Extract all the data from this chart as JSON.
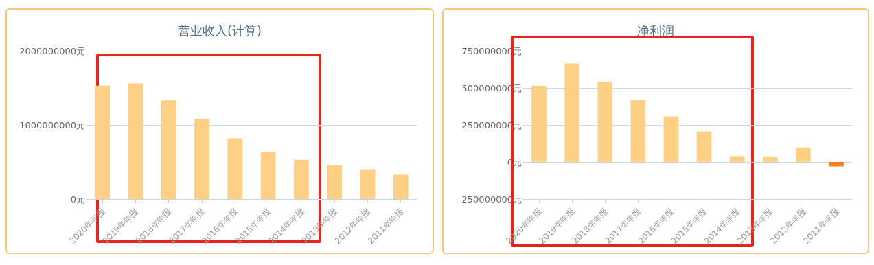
{
  "chart_data": [
    {
      "type": "bar",
      "title": "营业收入(计算)",
      "categories": [
        "2020年年报",
        "2019年年报",
        "2018年年报",
        "2017年年报",
        "2016年年报",
        "2015年年报",
        "2014年年报",
        "2013年年报",
        "2012年年报",
        "2011年年报"
      ],
      "values": [
        1530000000,
        1560000000,
        1330000000,
        1080000000,
        820000000,
        640000000,
        530000000,
        460000000,
        400000000,
        330000000
      ],
      "color": "#fdd085",
      "ylim": [
        0,
        2000000000
      ],
      "yticks": [
        {
          "value": 0,
          "label": "0元"
        },
        {
          "value": 1000000000,
          "label": "1000000000元"
        },
        {
          "value": 2000000000,
          "label": "2000000000元"
        }
      ],
      "grid": "y"
    },
    {
      "type": "bar",
      "title": "净利润",
      "categories": [
        "2020年年报",
        "2019年年报",
        "2018年年报",
        "2017年年报",
        "2016年年报",
        "2015年年报",
        "2014年年报",
        "2013年年报",
        "2012年年报",
        "2011年年报"
      ],
      "values": [
        514000000,
        664000000,
        540000000,
        418000000,
        308000000,
        206000000,
        40000000,
        32000000,
        98000000,
        -30000000
      ],
      "colors": [
        "#fdd085",
        "#fdd085",
        "#fdd085",
        "#fdd085",
        "#fdd085",
        "#fdd085",
        "#fdd085",
        "#fdd085",
        "#fdd085",
        "#ff7f1e"
      ],
      "ylim": [
        -250000000,
        750000000
      ],
      "yticks": [
        {
          "value": -250000000,
          "label": "-250000000元"
        },
        {
          "value": 0,
          "label": "0元"
        },
        {
          "value": 250000000,
          "label": "250000000元"
        },
        {
          "value": 500000000,
          "label": "500000000元"
        },
        {
          "value": 750000000,
          "label": "750000000元"
        }
      ],
      "grid": "y"
    }
  ]
}
